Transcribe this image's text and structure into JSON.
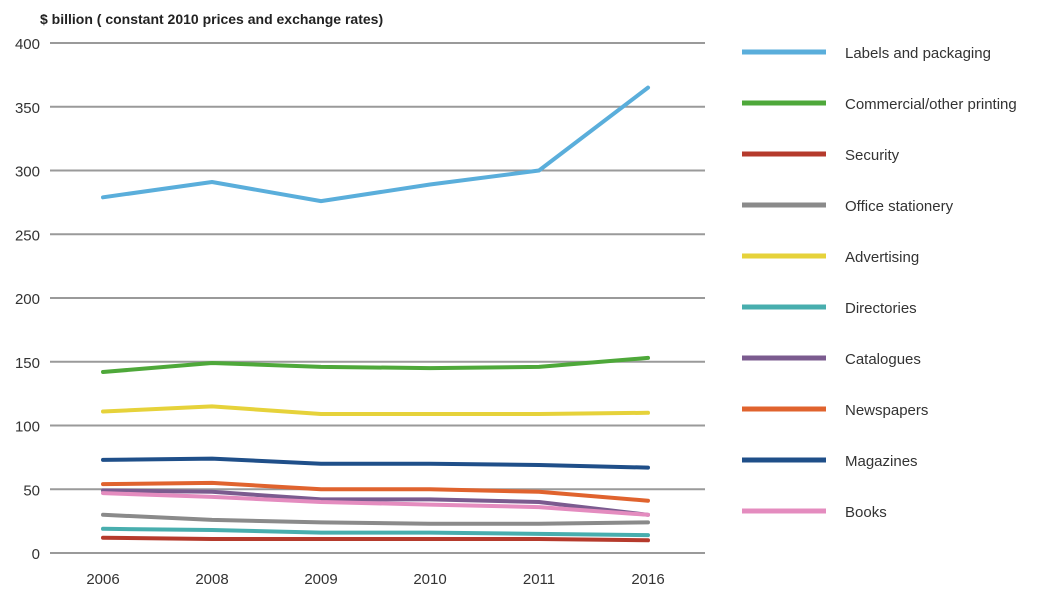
{
  "chart_data": {
    "type": "line",
    "title": "",
    "ylabel": "$ billion ( constant 2010 prices and exchange rates)",
    "xlabel": "",
    "categories": [
      "2006",
      "2008",
      "2009",
      "2010",
      "2011",
      "2016"
    ],
    "ylim": [
      0,
      400
    ],
    "yticks": [
      0,
      50,
      100,
      150,
      200,
      250,
      300,
      350,
      400
    ],
    "grid": true,
    "legend_position": "right",
    "series": [
      {
        "name": "Labels and packaging",
        "color": "#5aaedb",
        "values": [
          279,
          291,
          276,
          289,
          300,
          365
        ]
      },
      {
        "name": "Commercial/other printing",
        "color": "#4ea83a",
        "values": [
          142,
          149,
          146,
          145,
          146,
          153
        ]
      },
      {
        "name": "Security",
        "color": "#b53a2c",
        "values": [
          12,
          11,
          11,
          11,
          11,
          10
        ]
      },
      {
        "name": "Office stationery",
        "color": "#8a8a8a",
        "values": [
          30,
          26,
          24,
          23,
          23,
          24
        ]
      },
      {
        "name": "Advertising",
        "color": "#e6d23a",
        "values": [
          111,
          115,
          109,
          109,
          109,
          110
        ]
      },
      {
        "name": "Directories",
        "color": "#48aeae",
        "values": [
          19,
          18,
          16,
          16,
          15,
          14
        ]
      },
      {
        "name": "Catalogues",
        "color": "#7b5b8f",
        "values": [
          49,
          48,
          42,
          42,
          40,
          30
        ]
      },
      {
        "name": "Newspapers",
        "color": "#e0632e",
        "values": [
          54,
          55,
          50,
          50,
          48,
          41
        ]
      },
      {
        "name": "Magazines",
        "color": "#1f4f89",
        "values": [
          73,
          74,
          70,
          70,
          69,
          67
        ]
      },
      {
        "name": "Books",
        "color": "#e48cbf",
        "values": [
          47,
          44,
          40,
          38,
          36,
          30
        ]
      }
    ]
  }
}
